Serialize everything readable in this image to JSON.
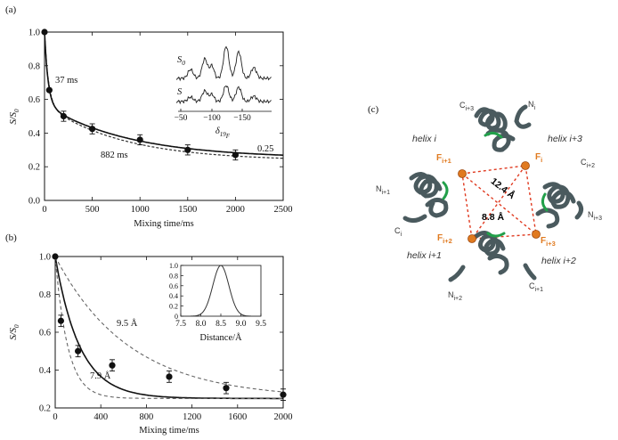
{
  "panels": {
    "a": {
      "label": "(a)",
      "chart_data": {
        "type": "scatter",
        "xlabel": "Mixing time/ms",
        "ylabel_main": "S/S",
        "ylabel_sub": "0",
        "xlim": [
          0,
          2500
        ],
        "ylim": [
          0,
          1.0
        ],
        "xticks": [
          0,
          500,
          1000,
          1500,
          2000,
          2500
        ],
        "yticks": [
          0,
          0.2,
          0.4,
          0.6,
          0.8,
          1.0
        ],
        "points": [
          {
            "x": 0,
            "y": 1.0,
            "err": 0.0
          },
          {
            "x": 50,
            "y": 0.655,
            "err": 0.0
          },
          {
            "x": 200,
            "y": 0.5,
            "err": 0.03
          },
          {
            "x": 500,
            "y": 0.425,
            "err": 0.03
          },
          {
            "x": 1000,
            "y": 0.36,
            "err": 0.03
          },
          {
            "x": 1500,
            "y": 0.3,
            "err": 0.03
          },
          {
            "x": 2000,
            "y": 0.27,
            "err": 0.03
          }
        ],
        "fit": {
          "plateau": 0.25,
          "tau_fast_ms": 37,
          "tau_slow_ms": 882,
          "fast_amp": 0.43,
          "slow_amp": 0.32
        },
        "annotations": {
          "fast": "37 ms",
          "slow": "882 ms",
          "plateau": "0.25"
        },
        "inset": {
          "x_ticks": [
            "−50",
            "−100",
            "−150"
          ],
          "xlabel_main": "δ",
          "xlabel_sub": "19",
          "xlabel_sub2": "F",
          "trace_top_main": "S",
          "trace_top_sub": "0",
          "trace_bottom": "S"
        }
      }
    },
    "b": {
      "label": "(b)",
      "chart_data": {
        "type": "scatter",
        "xlabel": "Mixing time/ms",
        "ylabel_main": "S/S",
        "ylabel_sub": "0",
        "xlim": [
          0,
          2000
        ],
        "ylim": [
          0.2,
          1.0
        ],
        "xticks": [
          0,
          400,
          800,
          1200,
          1600,
          2000
        ],
        "yticks": [
          0.2,
          0.4,
          0.6,
          0.8,
          1.0
        ],
        "points": [
          {
            "x": 0,
            "y": 1.0,
            "err": 0.0
          },
          {
            "x": 50,
            "y": 0.66,
            "err": 0.03
          },
          {
            "x": 200,
            "y": 0.5,
            "err": 0.03
          },
          {
            "x": 500,
            "y": 0.425,
            "err": 0.03
          },
          {
            "x": 1000,
            "y": 0.365,
            "err": 0.03
          },
          {
            "x": 1500,
            "y": 0.305,
            "err": 0.03
          },
          {
            "x": 2000,
            "y": 0.27,
            "err": 0.03
          }
        ],
        "curves": [
          {
            "label": "9.5 Å",
            "style": "dashed",
            "tau_ms": 650
          },
          {
            "label": "",
            "style": "solid",
            "tau_ms": 215
          },
          {
            "label": "7.9 Å",
            "style": "dashed",
            "tau_ms": 110
          }
        ],
        "plateau": 0.25,
        "inset": {
          "type": "line",
          "xlabel": "Distance/Å",
          "x_ticks": [
            "7.5",
            "8.0",
            "8.5",
            "9.0",
            "9.5"
          ],
          "y_ticks": [
            "0",
            "0.2",
            "0.4",
            "0.6",
            "0.8",
            "1.0"
          ],
          "xlim": [
            7.5,
            9.5
          ],
          "ylim": [
            0,
            1.0
          ],
          "gaussian_center": 8.5,
          "gaussian_sigma": 0.2
        }
      }
    },
    "c": {
      "label": "(c)",
      "helix_labels": [
        "helix i",
        "helix i+3",
        "helix i+1",
        "helix i+2"
      ],
      "term_labels": {
        "ci3": "C",
        "ci3_sub": "i+3",
        "ni": "N",
        "ni_sub": "i",
        "ci2": "C",
        "ci2_sub": "i+2",
        "ni3": "N",
        "ni3_sub": "i+3",
        "ni1": "N",
        "ni1_sub": "i+1",
        "ci": "C",
        "ci_sub": "i",
        "ni2": "N",
        "ni2_sub": "i+2",
        "ci1": "C",
        "ci1_sub": "i+1"
      },
      "fluorine_labels": {
        "f_i": "F",
        "f_i_sub": "i",
        "f_i1": "F",
        "f_i1_sub": "i+1",
        "f_i2": "F",
        "f_i2_sub": "i+2",
        "f_i3": "F",
        "f_i3_sub": "i+3"
      },
      "distances": {
        "diagonal": "12.4 Å",
        "adjacent": "8.8 Å"
      },
      "colors": {
        "helix": "#4a5a5e",
        "contact": "#22a04a",
        "fluorine": "#e07a20",
        "dash": "#e03a20"
      }
    }
  }
}
